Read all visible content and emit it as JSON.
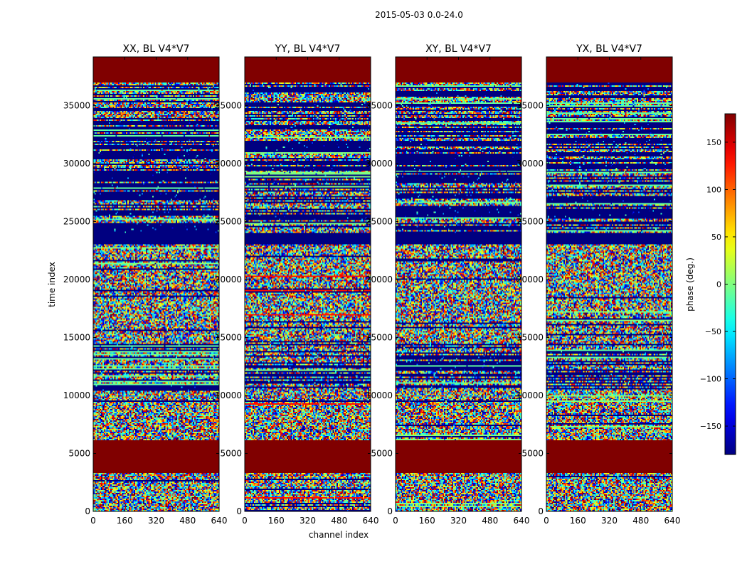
{
  "chart_data": {
    "type": "heatmap",
    "suptitle": "2015-05-03 0.0-24.0",
    "panels": [
      {
        "title": "XX, BL V4*V7"
      },
      {
        "title": "YY, BL V4*V7"
      },
      {
        "title": "XY, BL V4*V7"
      },
      {
        "title": "YX, BL V4*V7"
      }
    ],
    "xlabel": "channel index",
    "ylabel": "time index",
    "xlim": [
      0,
      640
    ],
    "ylim": [
      0,
      39200
    ],
    "x_ticks": [
      0,
      160,
      320,
      480,
      640
    ],
    "y_ticks": [
      0,
      5000,
      10000,
      15000,
      20000,
      25000,
      30000,
      35000
    ],
    "colorbar": {
      "label": "phase (deg.)",
      "vmin": -180,
      "vmax": 180,
      "ticks": [
        150,
        100,
        50,
        0,
        -50,
        -100,
        -150
      ],
      "tick_labels": [
        "150",
        "100",
        "50",
        "0",
        "−50",
        "−100",
        "−150"
      ],
      "colormap": "jet"
    },
    "bands": [
      {
        "y0": 0,
        "y1": 3300,
        "kind": "noise"
      },
      {
        "y0": 3300,
        "y1": 6100,
        "kind": "const",
        "value": 180
      },
      {
        "y0": 6100,
        "y1": 10500,
        "kind": "noise"
      },
      {
        "y0": 10500,
        "y1": 14500,
        "kind": "mixed"
      },
      {
        "y0": 14500,
        "y1": 23000,
        "kind": "noise"
      },
      {
        "y0": 23000,
        "y1": 24000,
        "kind": "const",
        "value": -180
      },
      {
        "y0": 24000,
        "y1": 37000,
        "kind": "mixed"
      },
      {
        "y0": 37000,
        "y1": 39200,
        "kind": "const",
        "value": 180
      }
    ]
  }
}
